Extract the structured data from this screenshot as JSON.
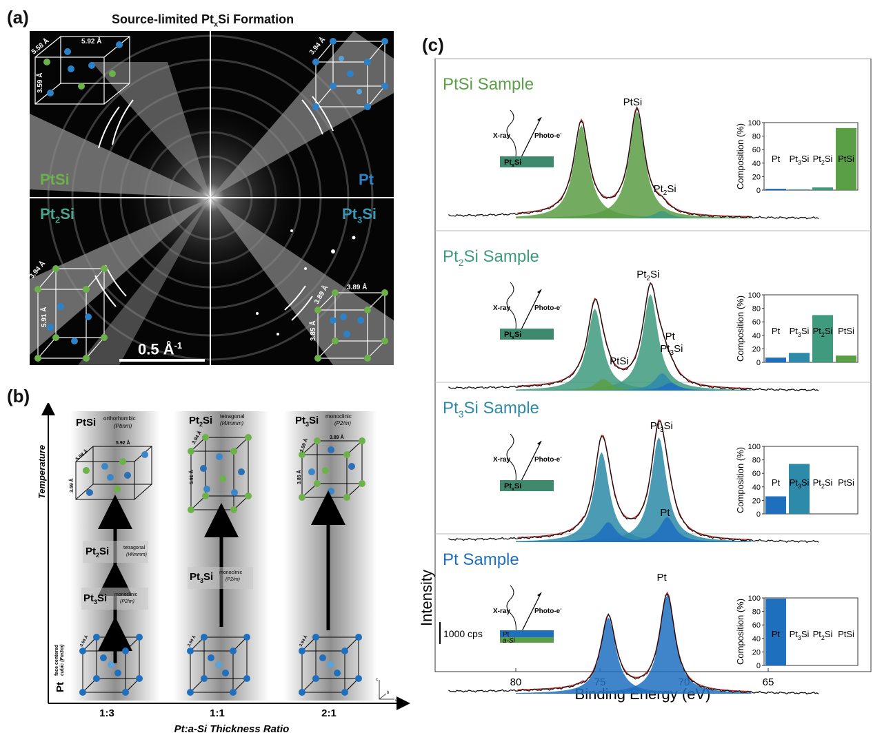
{
  "panel_a": {
    "label": "(a)",
    "title_pre": "Source-limited Pt",
    "title_sub": "x",
    "title_post": "Si Formation",
    "quadrants": [
      {
        "name": "PtSi",
        "base": "PtSi",
        "sub": "",
        "post": "",
        "color": "#6cb14a"
      },
      {
        "name": "Pt",
        "base": "Pt",
        "sub": "",
        "post": "",
        "color": "#2b82c9"
      },
      {
        "name": "Pt2Si",
        "base": "Pt",
        "sub": "2",
        "post": "Si",
        "color": "#4ca390"
      },
      {
        "name": "Pt3Si",
        "base": "Pt",
        "sub": "3",
        "post": "Si",
        "color": "#3b98b5"
      }
    ],
    "dims": {
      "ptsi_a": "5.58 Å",
      "ptsi_b": "5.92 Å",
      "ptsi_c": "3.59 Å",
      "pt_a": "3.94 Å",
      "pt2si_a": "3.94 Å",
      "pt2si_c": "5.91 Å",
      "pt3si_a": "3.89 Å",
      "pt3si_b": "3.89 Å",
      "pt3si_c": "3.85 Å"
    },
    "scale_bar": "0.5 Å",
    "scale_bar_exp": "-1"
  },
  "panel_b": {
    "label": "(b)",
    "y_axis": "Temperature",
    "x_axis": "Pt:a-Si Thickness Ratio",
    "ratios": [
      "1:3",
      "1:1",
      "2:1"
    ],
    "columns": [
      {
        "top_base": "PtSi",
        "top_sub": "",
        "top_post": "",
        "top_sys": "orthorhombic",
        "top_grp": "(Pbnm)",
        "steps": [
          {
            "base": "Pt",
            "sub": "2",
            "post": "Si",
            "sys": "tetragonal",
            "grp": "(I4/mmm)"
          },
          {
            "base": "Pt",
            "sub": "3",
            "post": "Si",
            "sys": "monoclinic",
            "grp": "(P2/m)"
          }
        ]
      },
      {
        "top_base": "Pt",
        "top_sub": "2",
        "top_post": "Si",
        "top_sys": "tetragonal",
        "top_grp": "(I4/mmm)",
        "steps": [
          {
            "base": "Pt",
            "sub": "3",
            "post": "Si",
            "sys": "monoclinic",
            "grp": "(P2/m)"
          }
        ]
      },
      {
        "top_base": "Pt",
        "top_sub": "3",
        "top_post": "Si",
        "top_sys": "monoclinic",
        "top_grp": "(P2/m)",
        "steps": []
      }
    ],
    "bottom_label": "Pt",
    "bottom_sys1": "face centered",
    "bottom_sys2": "cubic (Fm3m)",
    "dim_pt": "3.94 Å",
    "axes_glyph": {
      "c": "c",
      "b": "b",
      "a": "a"
    }
  },
  "panel_c": {
    "label": "(c)",
    "x_axis_label": "Binding Energy (eV)",
    "y_axis_label": "Intensity",
    "scale_label": "1000 cps",
    "x_ticks": [
      "80",
      "75",
      "70",
      "65"
    ],
    "xray": "X-ray",
    "photo": "Photo-e",
    "photo_sup": "-",
    "bar_ylabel": "Composition (%)",
    "bar_ticks": [
      "0",
      "20",
      "40",
      "60",
      "80",
      "100"
    ],
    "colors": {
      "pt": "#1f6fbf",
      "pt3si": "#2d8aa8",
      "pt2si": "#3f9a7e",
      "ptsi": "#5a9e45",
      "fit": "#d42a2a",
      "data": "#111111"
    }
  },
  "chart_data": [
    {
      "type": "bar",
      "title": "PtSi Sample",
      "categories": [
        "Pt",
        "Pt3Si",
        "Pt2Si",
        "PtSi"
      ],
      "category_labels": [
        {
          "base": "Pt",
          "sub": "",
          "post": ""
        },
        {
          "base": "Pt",
          "sub": "3",
          "post": "Si"
        },
        {
          "base": "Pt",
          "sub": "2",
          "post": "Si"
        },
        {
          "base": "PtSi",
          "sub": "",
          "post": ""
        }
      ],
      "values": [
        2,
        1,
        4,
        92
      ],
      "ylabel": "Composition (%)",
      "ylim": [
        0,
        100
      ],
      "sample_label": {
        "base": "PtSi",
        "sub": "",
        "post": " Sample",
        "color": "#5a9e45"
      },
      "substrate": {
        "base": "Pt",
        "sub": "x",
        "post": "Si",
        "color": "#3f8a6e"
      },
      "peaks": [
        {
          "label_base": "PtSi",
          "label_sub": "",
          "label_post": ""
        },
        {
          "label_base": "Pt",
          "label_sub": "2",
          "label_post": "Si"
        }
      ]
    },
    {
      "type": "bar",
      "title": "Pt2Si Sample",
      "categories": [
        "Pt",
        "Pt3Si",
        "Pt2Si",
        "PtSi"
      ],
      "category_labels": [
        {
          "base": "Pt",
          "sub": "",
          "post": ""
        },
        {
          "base": "Pt",
          "sub": "3",
          "post": "Si"
        },
        {
          "base": "Pt",
          "sub": "2",
          "post": "Si"
        },
        {
          "base": "PtSi",
          "sub": "",
          "post": ""
        }
      ],
      "values": [
        7,
        14,
        70,
        10
      ],
      "ylabel": "Composition (%)",
      "ylim": [
        0,
        100
      ],
      "sample_label": {
        "base": "Pt",
        "sub": "2",
        "post": "Si Sample",
        "color": "#3f9a7e"
      },
      "substrate": {
        "base": "Pt",
        "sub": "x",
        "post": "Si",
        "color": "#3f8a6e"
      },
      "peaks": [
        {
          "label_base": "Pt",
          "label_sub": "2",
          "label_post": "Si"
        },
        {
          "label_base": "PtSi",
          "label_sub": "",
          "label_post": ""
        },
        {
          "label_base": "Pt",
          "label_sub": "3",
          "label_post": "Si"
        },
        {
          "label_base": "Pt",
          "label_sub": "",
          "label_post": ""
        }
      ]
    },
    {
      "type": "bar",
      "title": "Pt3Si Sample",
      "categories": [
        "Pt",
        "Pt3Si",
        "Pt2Si",
        "PtSi"
      ],
      "category_labels": [
        {
          "base": "Pt",
          "sub": "",
          "post": ""
        },
        {
          "base": "Pt",
          "sub": "3",
          "post": "Si"
        },
        {
          "base": "Pt",
          "sub": "2",
          "post": "Si"
        },
        {
          "base": "PtSi",
          "sub": "",
          "post": ""
        }
      ],
      "values": [
        26,
        74,
        0,
        0
      ],
      "ylabel": "Composition (%)",
      "ylim": [
        0,
        100
      ],
      "sample_label": {
        "base": "Pt",
        "sub": "3",
        "post": "Si Sample",
        "color": "#2d8aa8"
      },
      "substrate": {
        "base": "Pt",
        "sub": "x",
        "post": "Si",
        "color": "#3f8a6e"
      },
      "peaks": [
        {
          "label_base": "Pt",
          "label_sub": "3",
          "label_post": "Si"
        },
        {
          "label_base": "Pt",
          "label_sub": "",
          "label_post": ""
        }
      ]
    },
    {
      "type": "bar",
      "title": "Pt Sample",
      "categories": [
        "Pt",
        "Pt3Si",
        "Pt2Si",
        "PtSi"
      ],
      "category_labels": [
        {
          "base": "Pt",
          "sub": "",
          "post": ""
        },
        {
          "base": "Pt",
          "sub": "3",
          "post": "Si"
        },
        {
          "base": "Pt",
          "sub": "2",
          "post": "Si"
        },
        {
          "base": "PtSi",
          "sub": "",
          "post": ""
        }
      ],
      "values": [
        99,
        0,
        0,
        0
      ],
      "ylabel": "Composition (%)",
      "ylim": [
        0,
        100
      ],
      "sample_label": {
        "base": "Pt",
        "sub": "",
        "post": " Sample",
        "color": "#1f6fbf"
      },
      "substrate": {
        "top": "Pt",
        "bottom": "a-Si"
      },
      "peaks": [
        {
          "label_base": "Pt",
          "label_sub": "",
          "label_post": ""
        }
      ]
    }
  ]
}
